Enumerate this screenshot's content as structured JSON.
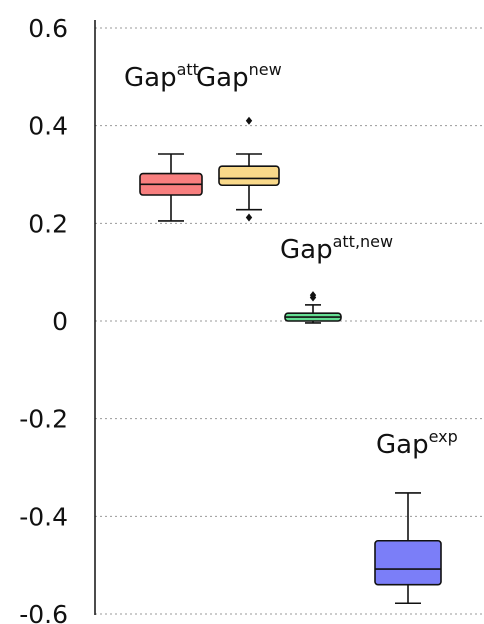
{
  "chart_data": {
    "type": "box",
    "ylim": [
      -0.6,
      0.6
    ],
    "yticks": [
      0.6,
      0.4,
      0.2,
      0,
      -0.2,
      -0.4,
      -0.6
    ],
    "ytick_labels": [
      "0.6",
      "0.4",
      "0.2",
      "0",
      "-0.2",
      "-0.4",
      "-0.6"
    ],
    "grid": true,
    "series": [
      {
        "label_base": "Gap",
        "label_sup": "att",
        "color": "#f87f7f",
        "whisker_low": 0.205,
        "q1": 0.258,
        "median": 0.28,
        "q3": 0.302,
        "whisker_high": 0.342,
        "outliers": []
      },
      {
        "label_base": "Gap",
        "label_sup": "new",
        "color": "#f9d98a",
        "whisker_low": 0.228,
        "q1": 0.278,
        "median": 0.292,
        "q3": 0.317,
        "whisker_high": 0.342,
        "outliers": [
          0.41,
          0.212
        ]
      },
      {
        "label_base": "Gap",
        "label_sup": "att,new",
        "color": "#64de92",
        "whisker_low": -0.004,
        "q1": 0.0,
        "median": 0.008,
        "q3": 0.016,
        "whisker_high": 0.033,
        "outliers": [
          0.048,
          0.053
        ]
      },
      {
        "label_base": "Gap",
        "label_sup": "exp",
        "color": "#7b7ef8",
        "whisker_low": -0.578,
        "q1": -0.54,
        "median": -0.508,
        "q3": -0.45,
        "whisker_high": -0.352,
        "outliers": []
      }
    ]
  }
}
